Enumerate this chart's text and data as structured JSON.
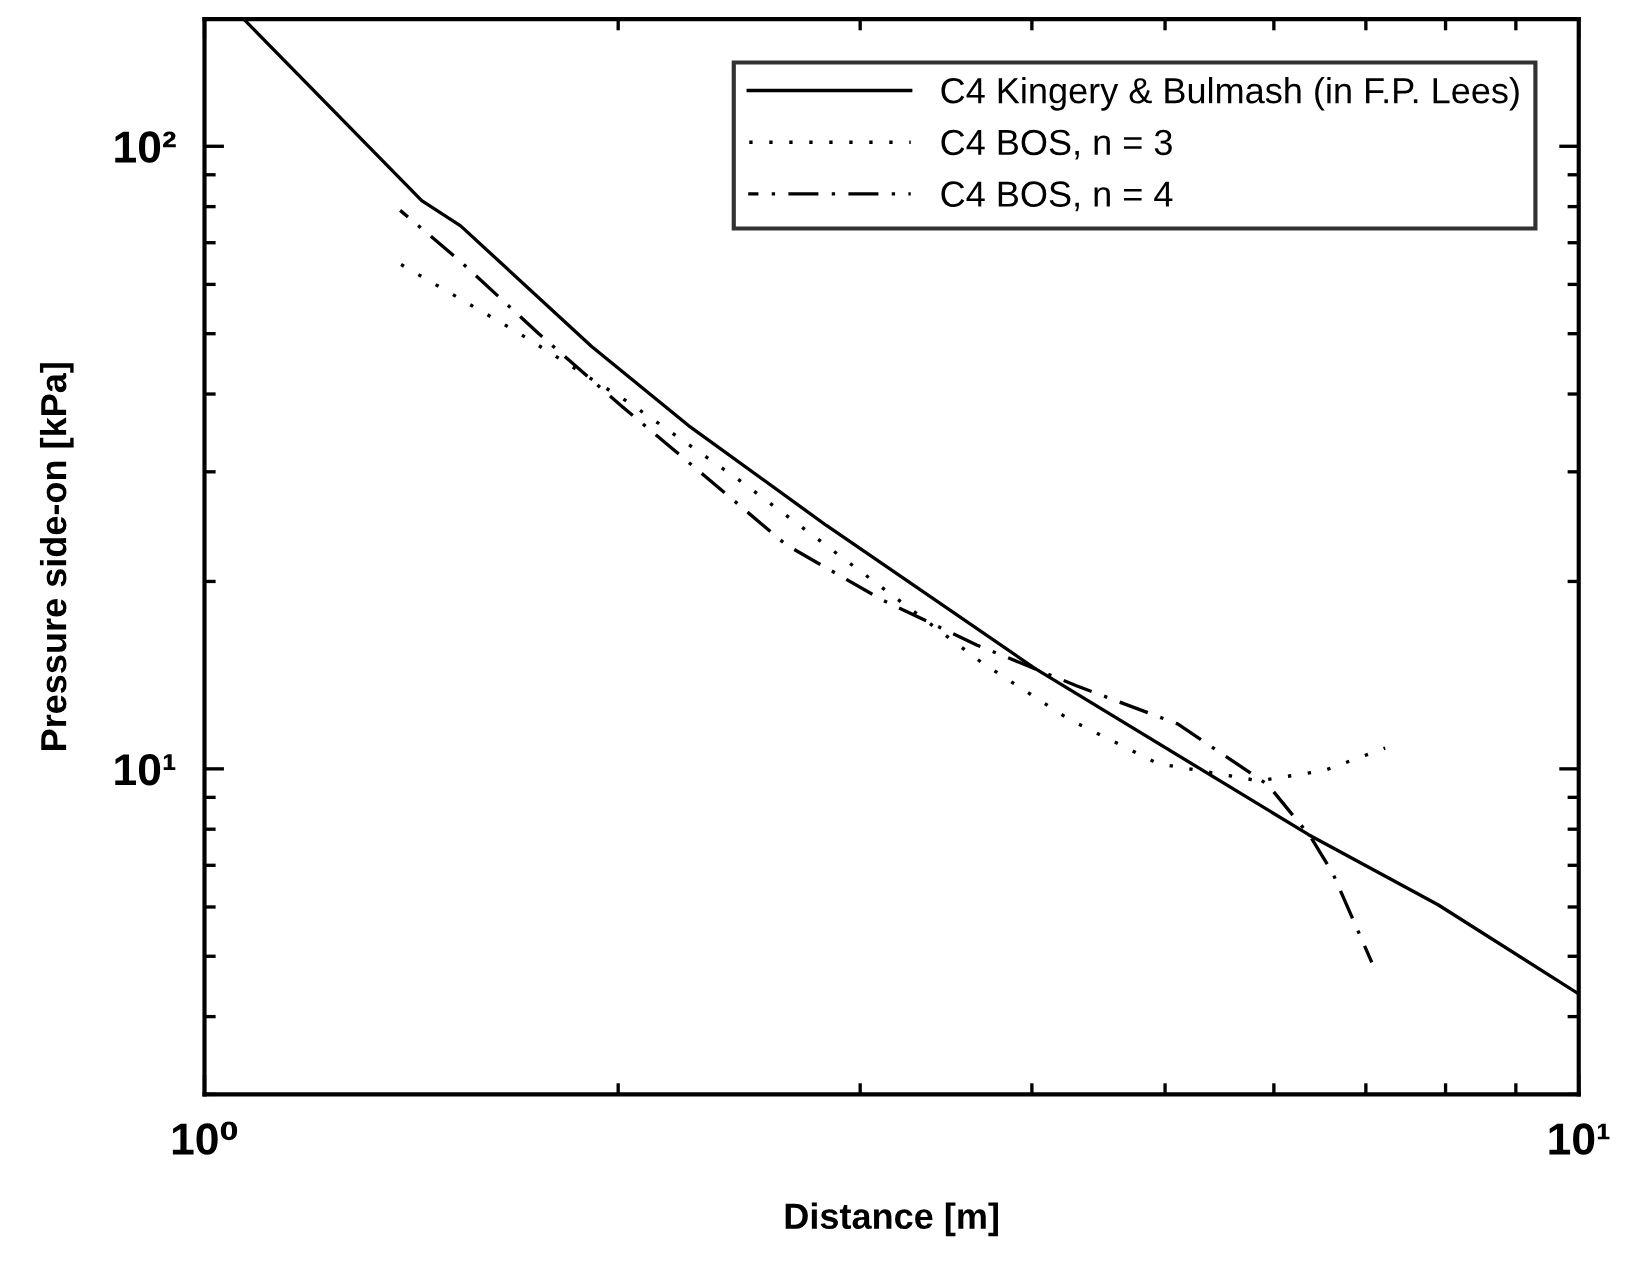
{
  "chart_data": {
    "type": "line",
    "xlabel": "Distance [m]",
    "ylabel": "Pressure side-on [kPa]",
    "log": "xy",
    "xlim": [
      1,
      10
    ],
    "ylim": [
      3,
      160
    ],
    "xticks": [
      {
        "value": 1,
        "label": "10⁰"
      },
      {
        "value": 10,
        "label": "10¹"
      }
    ],
    "yticks": [
      {
        "value": 10,
        "label": "10¹"
      },
      {
        "value": 100,
        "label": "10²"
      }
    ],
    "grid": false,
    "legend": "top right",
    "marker": "none",
    "series": [
      {
        "name": "C4 Kingery & Bulmash (in F.P. Lees)",
        "color": "#000000",
        "line_style": "solid",
        "x": [
          1.071,
          1.439,
          1.536,
          1.913,
          2.25,
          2.835,
          4.02,
          6.36,
          7.9,
          10
        ],
        "values": [
          159,
          81.8,
          74.5,
          47.7,
          35.6,
          24.6,
          14.5,
          7.84,
          6.05,
          4.35
        ]
      },
      {
        "name": "C4 BOS, n = 3",
        "color": "#000000",
        "line_style": "dotted",
        "x": [
          1.388,
          1.689,
          2.042,
          2.46,
          3.68,
          4.26,
          4.94,
          5.85,
          6.52,
          7.23
        ],
        "values": [
          64.7,
          50.3,
          38.6,
          28.9,
          14.8,
          12.0,
          10.2,
          9.57,
          9.93,
          10.8
        ]
      },
      {
        "name": "C4 BOS, n = 4",
        "color": "#000000",
        "line_style": "dashdot",
        "x": [
          1.388,
          1.531,
          1.751,
          2.01,
          2.31,
          2.65,
          3.11,
          3.65,
          4.31,
          5.11,
          5.94,
          6.38,
          6.62,
          7.07
        ],
        "values": [
          78.9,
          65.7,
          50.0,
          38.3,
          29.6,
          22.9,
          18.7,
          15.8,
          13.6,
          11.8,
          9.43,
          7.78,
          6.81,
          4.89
        ]
      }
    ]
  }
}
